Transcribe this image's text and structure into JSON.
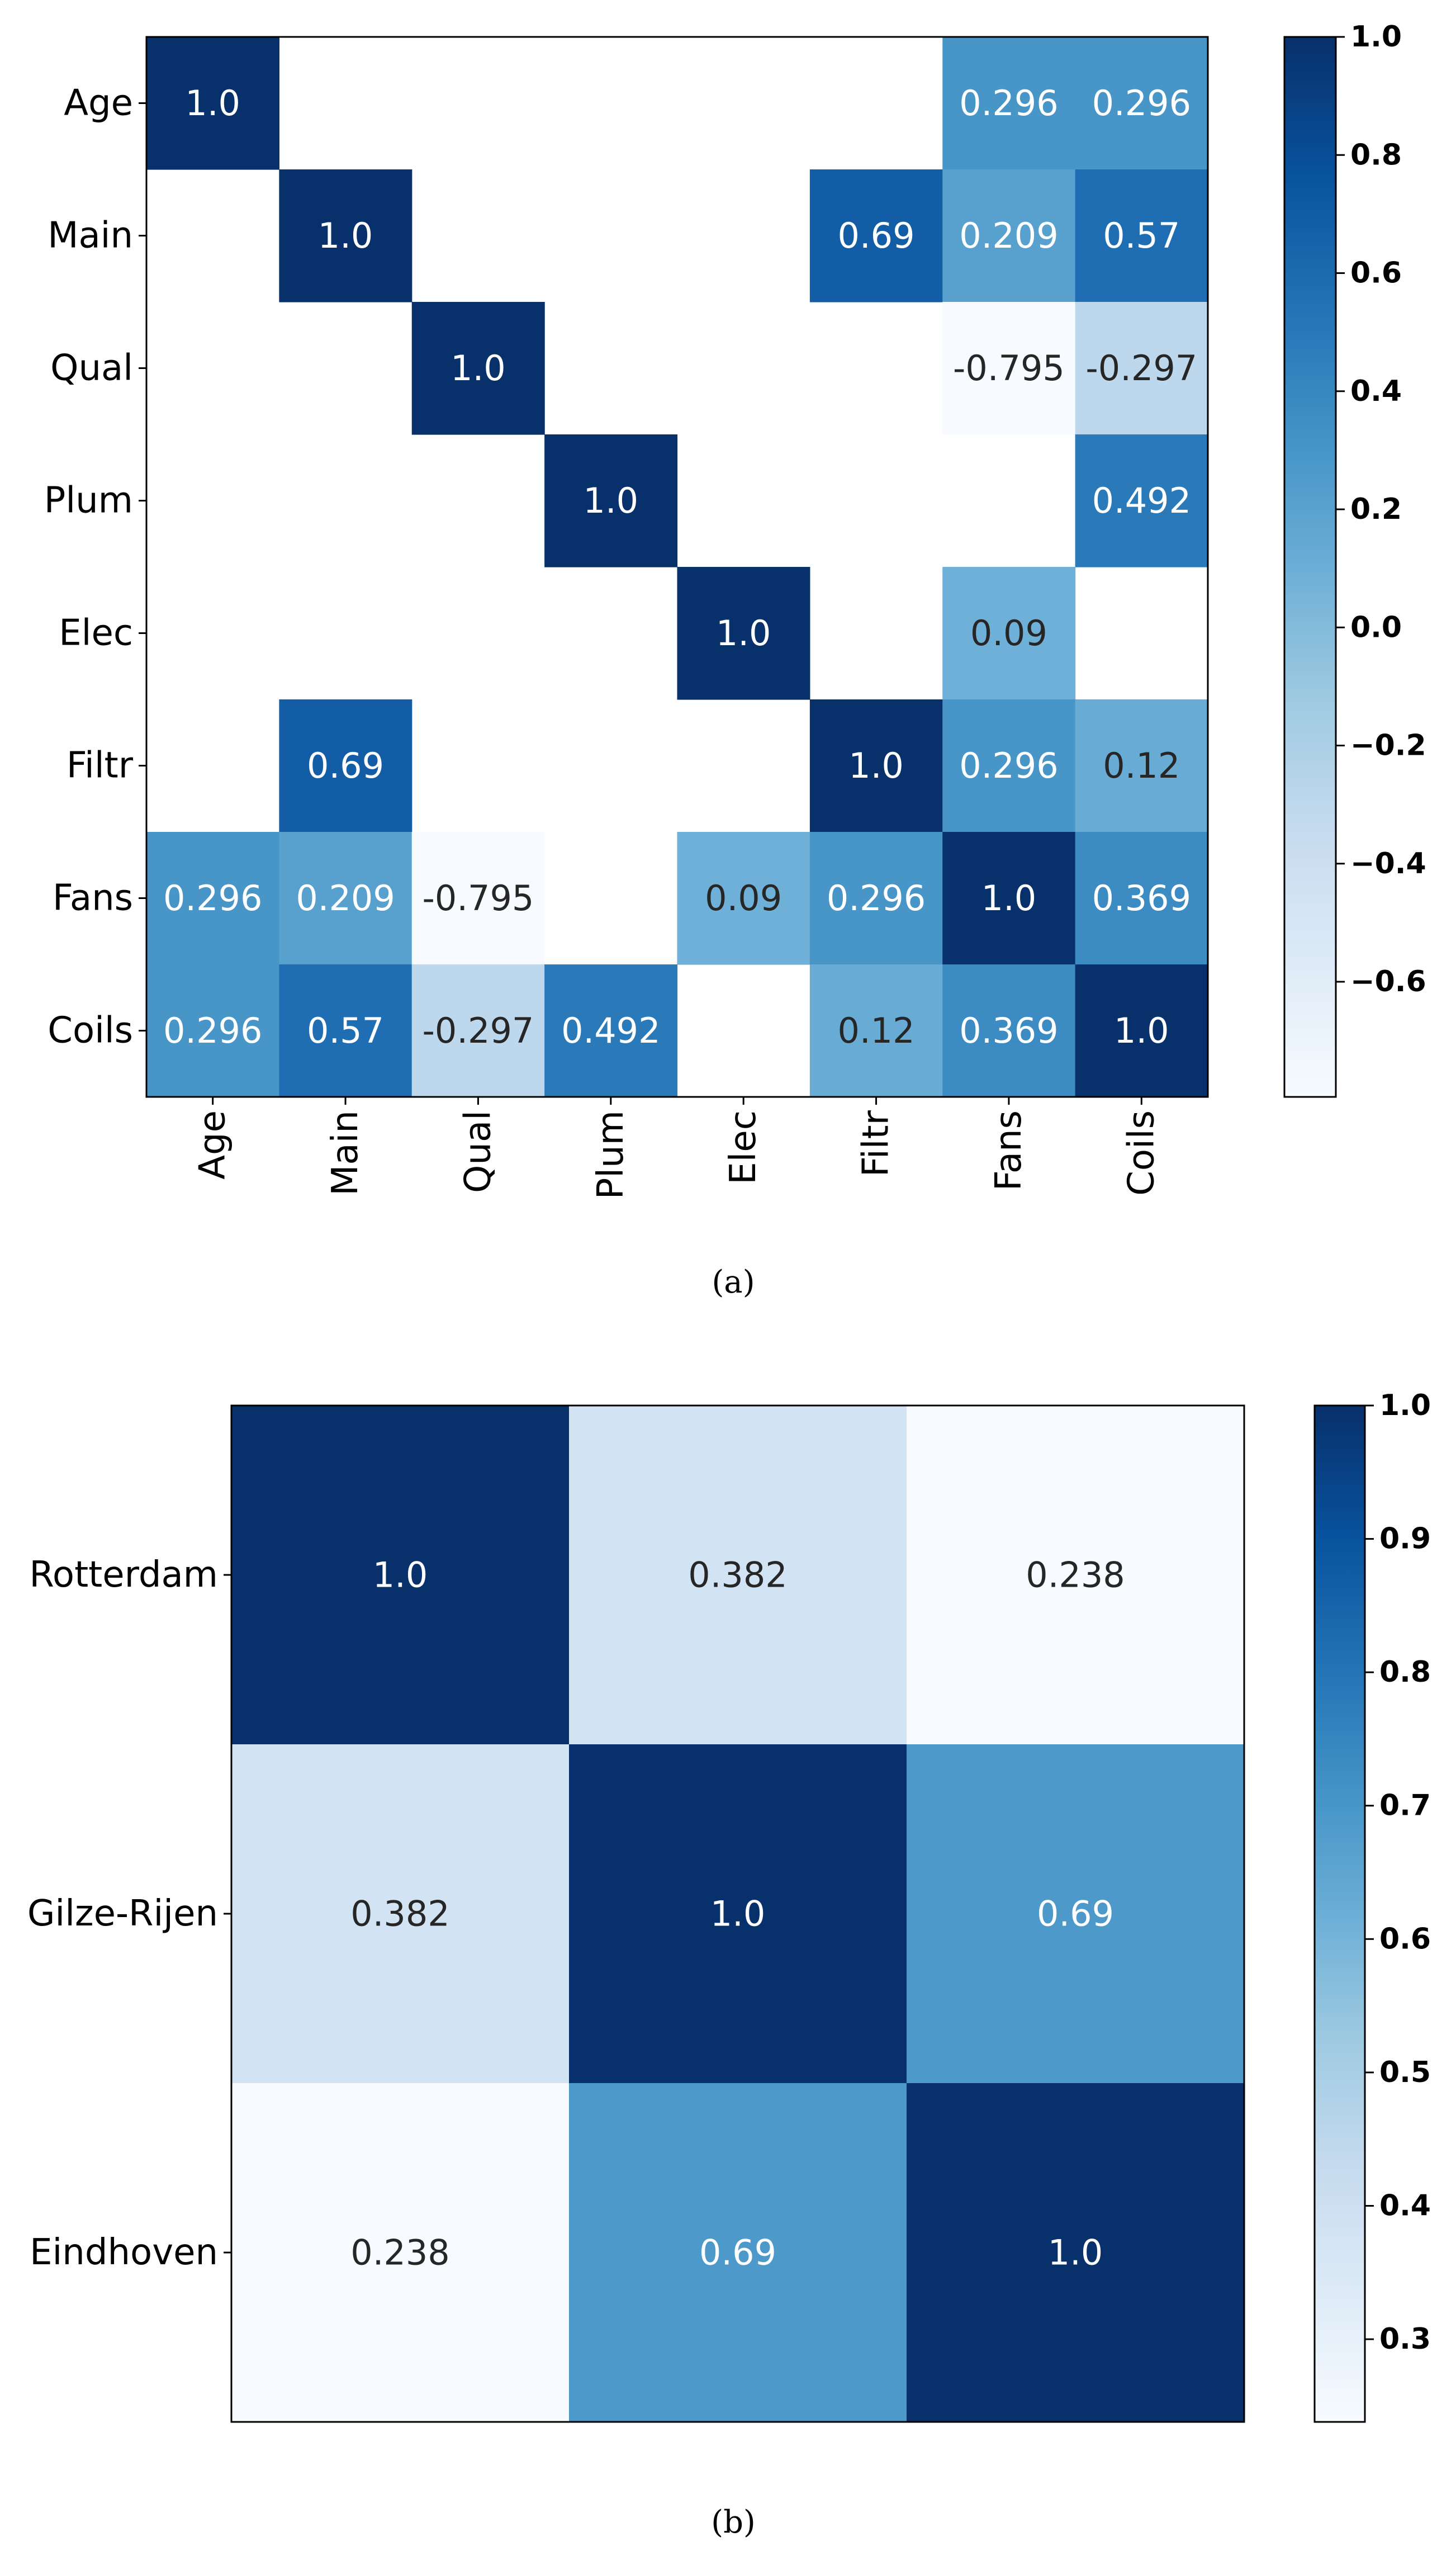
{
  "chart_data": [
    {
      "type": "heatmap",
      "caption": "(a)",
      "row_labels": [
        "Age",
        "Main",
        "Qual",
        "Plum",
        "Elec",
        "Filtr",
        "Fans",
        "Coils"
      ],
      "col_labels": [
        "Age",
        "Main",
        "Qual",
        "Plum",
        "Elec",
        "Filtr",
        "Fans",
        "Coils"
      ],
      "values": [
        [
          1.0,
          null,
          null,
          null,
          null,
          null,
          0.296,
          0.296
        ],
        [
          null,
          1.0,
          null,
          null,
          null,
          0.69,
          0.209,
          0.57
        ],
        [
          null,
          null,
          1.0,
          null,
          null,
          null,
          -0.795,
          -0.297
        ],
        [
          null,
          null,
          null,
          1.0,
          null,
          null,
          null,
          0.492
        ],
        [
          null,
          null,
          null,
          null,
          1.0,
          null,
          0.09,
          null
        ],
        [
          null,
          0.69,
          null,
          null,
          null,
          1.0,
          0.296,
          0.12
        ],
        [
          0.296,
          0.209,
          -0.795,
          null,
          0.09,
          0.296,
          1.0,
          0.369
        ],
        [
          0.296,
          0.57,
          -0.297,
          0.492,
          null,
          0.12,
          0.369,
          1.0
        ]
      ],
      "value_labels": [
        [
          "1.0",
          "",
          "",
          "",
          "",
          "",
          "0.296",
          "0.296"
        ],
        [
          "",
          "1.0",
          "",
          "",
          "",
          "0.69",
          "0.209",
          "0.57"
        ],
        [
          "",
          "",
          "1.0",
          "",
          "",
          "",
          "-0.795",
          "-0.297"
        ],
        [
          "",
          "",
          "",
          "1.0",
          "",
          "",
          "",
          "0.492"
        ],
        [
          "",
          "",
          "",
          "",
          "1.0",
          "",
          "0.09",
          ""
        ],
        [
          "",
          "0.69",
          "",
          "",
          "",
          "1.0",
          "0.296",
          "0.12"
        ],
        [
          "0.296",
          "0.209",
          "-0.795",
          "",
          "0.09",
          "0.296",
          "1.0",
          "0.369"
        ],
        [
          "0.296",
          "0.57",
          "-0.297",
          "0.492",
          "",
          "0.12",
          "0.369",
          "1.0"
        ]
      ],
      "colorbar": {
        "min": -0.795,
        "max": 1.0,
        "ticks": [
          1.0,
          0.8,
          0.6,
          0.4,
          0.2,
          0.0,
          -0.2,
          -0.4,
          -0.6
        ],
        "tick_labels": [
          "1.0",
          "0.8",
          "0.6",
          "0.4",
          "0.2",
          "0.0",
          "−0.2",
          "−0.4",
          "−0.6"
        ]
      },
      "colormap": "Blues"
    },
    {
      "type": "heatmap",
      "caption": "(b)",
      "row_labels": [
        "Rotterdam",
        "Gilze-Rijen",
        "Eindhoven"
      ],
      "col_labels": [],
      "values": [
        [
          1.0,
          0.382,
          0.238
        ],
        [
          0.382,
          1.0,
          0.69
        ],
        [
          0.238,
          0.69,
          1.0
        ]
      ],
      "value_labels": [
        [
          "1.0",
          "0.382",
          "0.238"
        ],
        [
          "0.382",
          "1.0",
          "0.69"
        ],
        [
          "0.238",
          "0.69",
          "1.0"
        ]
      ],
      "colorbar": {
        "min": 0.238,
        "max": 1.0,
        "ticks": [
          1.0,
          0.9,
          0.8,
          0.7,
          0.6,
          0.5,
          0.4,
          0.3
        ],
        "tick_labels": [
          "1.0",
          "0.9",
          "0.8",
          "0.7",
          "0.6",
          "0.5",
          "0.4",
          "0.3"
        ]
      },
      "colormap": "Blues"
    }
  ]
}
